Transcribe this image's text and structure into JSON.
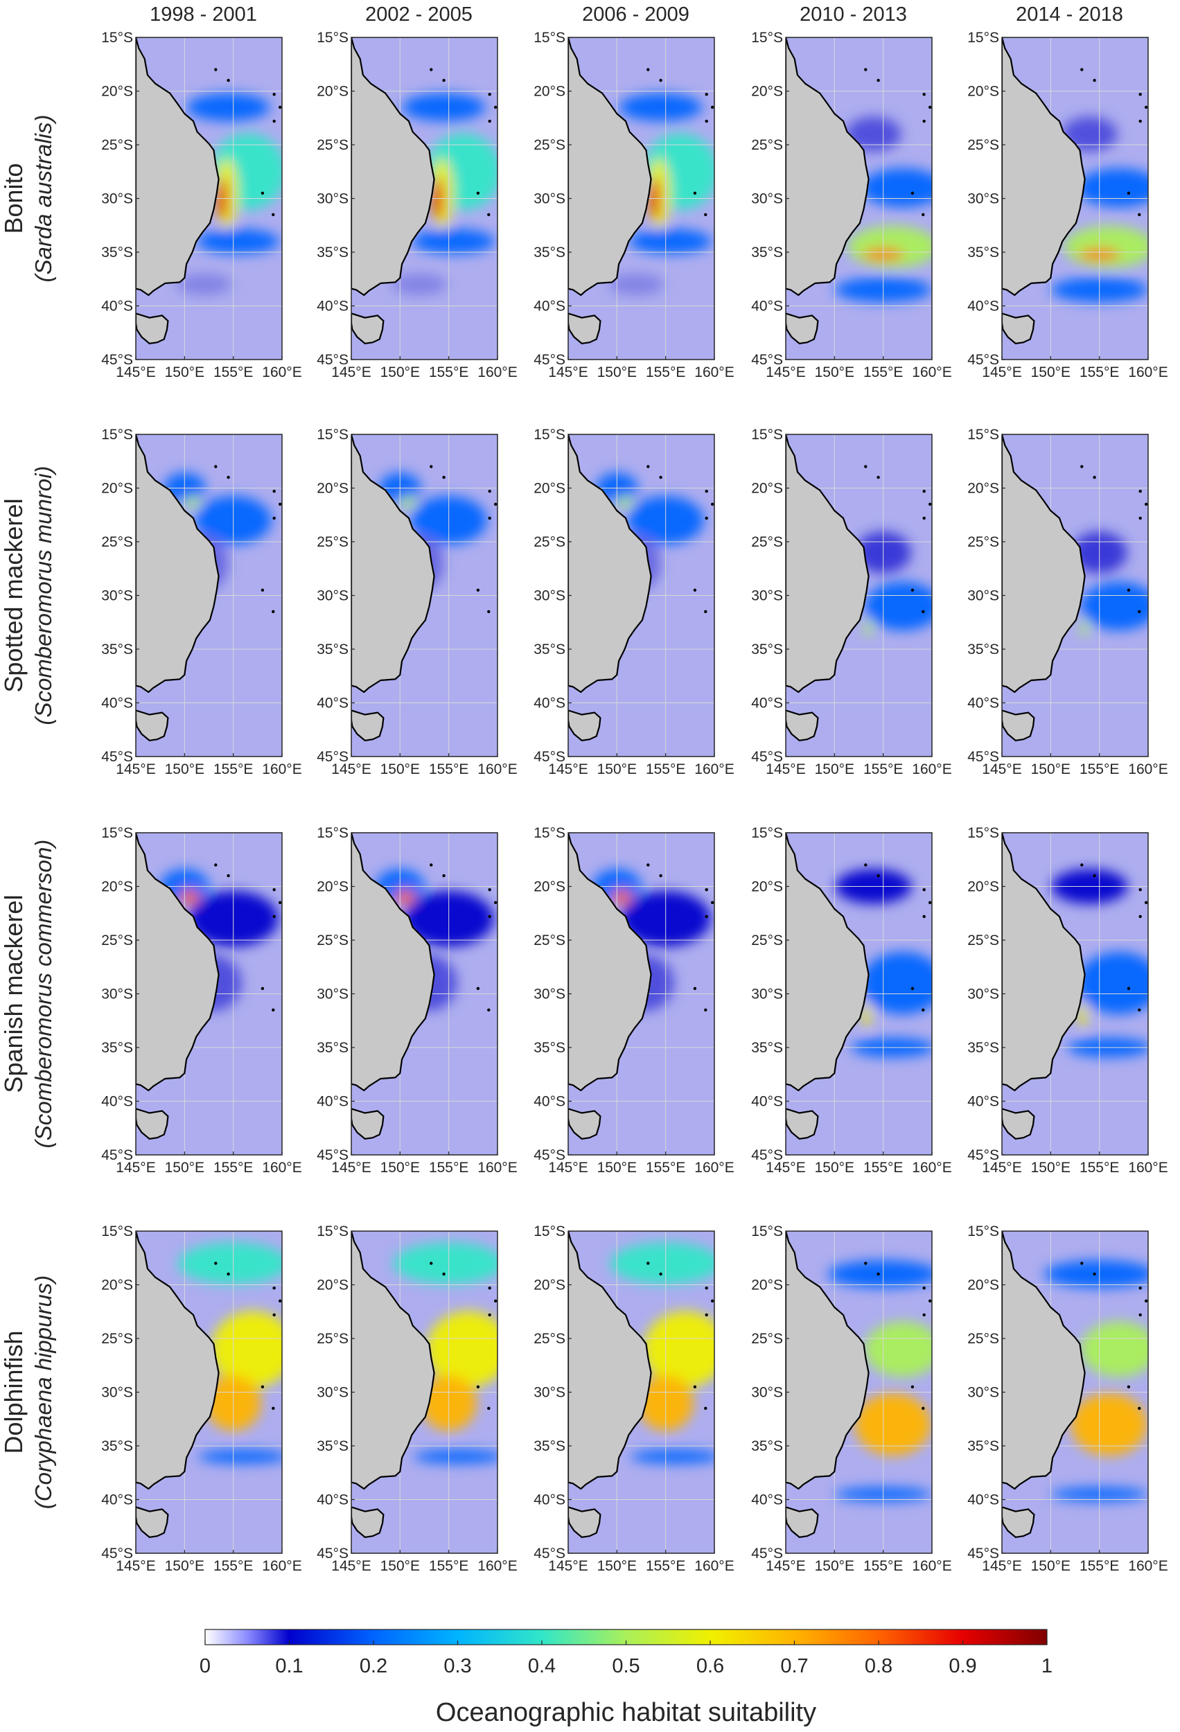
{
  "periods": [
    "1998 - 2001",
    "2002 - 2005",
    "2006 - 2009",
    "2010 - 2013",
    "2014 - 2018"
  ],
  "species": [
    {
      "common": "Bonito",
      "scientific": "Sarda australis"
    },
    {
      "common": "Spotted mackerel",
      "scientific": "Scomberomorus munroi"
    },
    {
      "common": "Spanish mackerel",
      "scientific": "Scomberomorus commerson"
    },
    {
      "common": "Dolphinfish",
      "scientific": "Coryphaena hippurus"
    }
  ],
  "lat_ticks": [
    "15°S",
    "20°S",
    "25°S",
    "30°S",
    "35°S",
    "40°S",
    "45°S"
  ],
  "lon_ticks": [
    "145°E",
    "150°E",
    "155°E",
    "160°E"
  ],
  "lat_range": [
    -45,
    -15
  ],
  "lon_range": [
    145,
    160
  ],
  "colorbar": {
    "title": "Oceanographic habitat suitability",
    "ticks": [
      "0",
      "0.1",
      "0.2",
      "0.3",
      "0.4",
      "0.5",
      "0.6",
      "0.7",
      "0.8",
      "0.9",
      "1"
    ],
    "range": [
      0,
      1
    ],
    "colormap": "jet",
    "colors": [
      "#ffffff",
      "#0000cd",
      "#0064ff",
      "#00b4ff",
      "#32e6c8",
      "#aaf05a",
      "#f0f000",
      "#ffb400",
      "#ff6400",
      "#e60000",
      "#800000"
    ]
  },
  "map_colors": {
    "land": "#c8c8c8",
    "coast": "#000000",
    "grid": "#d9d9d9"
  }
}
